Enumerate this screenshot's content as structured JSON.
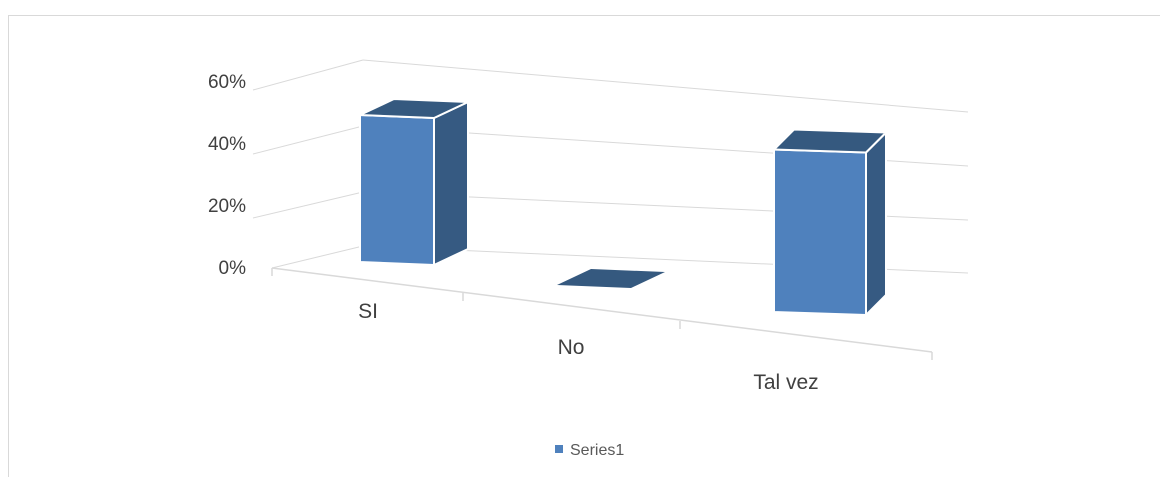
{
  "chart_data": {
    "type": "bar",
    "categories": [
      "SI",
      "No",
      "Tal vez"
    ],
    "series": [
      {
        "name": "Series1",
        "values": [
          0.5,
          0.0,
          0.5
        ],
        "color": "#4f81bd"
      }
    ],
    "y_ticks": [
      "0%",
      "20%",
      "40%",
      "60%"
    ],
    "ylim": [
      0,
      0.6
    ],
    "grid": true,
    "legend": "bottom",
    "title": "",
    "xlabel": "",
    "ylabel": ""
  }
}
